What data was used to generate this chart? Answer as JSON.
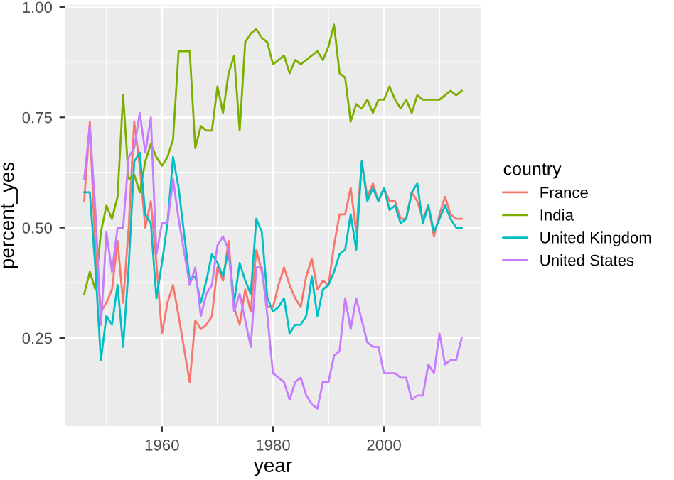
{
  "chart_data": {
    "type": "line",
    "xlabel": "year",
    "ylabel": "percent_yes",
    "legend_title": "country",
    "legend": "right",
    "grid": true,
    "x": [
      1946,
      1947,
      1948,
      1949,
      1950,
      1951,
      1952,
      1953,
      1954,
      1955,
      1956,
      1957,
      1958,
      1959,
      1960,
      1961,
      1962,
      1963,
      1965,
      1966,
      1967,
      1968,
      1969,
      1970,
      1971,
      1972,
      1973,
      1974,
      1975,
      1976,
      1977,
      1978,
      1979,
      1980,
      1981,
      1982,
      1983,
      1984,
      1985,
      1986,
      1987,
      1988,
      1989,
      1990,
      1991,
      1992,
      1993,
      1994,
      1995,
      1996,
      1997,
      1998,
      1999,
      2000,
      2001,
      2002,
      2003,
      2004,
      2005,
      2006,
      2007,
      2008,
      2009,
      2010,
      2011,
      2012,
      2013,
      2014
    ],
    "xlim": [
      1942.6,
      2017.4
    ],
    "xticks": [
      1960,
      1980,
      2000
    ],
    "ylim": [
      0.05,
      1.005
    ],
    "yticks": [
      {
        "value": 0.25,
        "label": "0.25"
      },
      {
        "value": 0.5,
        "label": "0.50"
      },
      {
        "value": 0.75,
        "label": "0.75"
      },
      {
        "value": 1.0,
        "label": "1.00"
      }
    ],
    "series": [
      {
        "name": "France",
        "color": "#f8766d",
        "values": [
          0.56,
          0.74,
          0.45,
          0.31,
          0.33,
          0.36,
          0.47,
          0.33,
          0.5,
          0.74,
          0.64,
          0.5,
          0.56,
          0.42,
          0.26,
          0.33,
          0.37,
          0.3,
          0.15,
          0.29,
          0.27,
          0.28,
          0.3,
          0.41,
          0.38,
          0.47,
          0.32,
          0.28,
          0.36,
          0.31,
          0.45,
          0.4,
          0.32,
          0.32,
          0.37,
          0.41,
          0.37,
          0.34,
          0.32,
          0.39,
          0.43,
          0.36,
          0.38,
          0.37,
          0.46,
          0.53,
          0.53,
          0.59,
          0.49,
          0.65,
          0.57,
          0.6,
          0.56,
          0.59,
          0.56,
          0.56,
          0.52,
          0.52,
          0.58,
          0.56,
          0.52,
          0.55,
          0.48,
          0.53,
          0.57,
          0.53,
          0.52,
          0.52
        ]
      },
      {
        "name": "India",
        "color": "#7cae00",
        "values": [
          0.35,
          0.4,
          0.36,
          0.49,
          0.55,
          0.52,
          0.57,
          0.8,
          0.61,
          0.62,
          0.58,
          0.65,
          0.69,
          0.66,
          0.64,
          0.66,
          0.7,
          0.9,
          0.9,
          0.68,
          0.73,
          0.72,
          0.72,
          0.82,
          0.76,
          0.85,
          0.89,
          0.72,
          0.92,
          0.94,
          0.95,
          0.93,
          0.92,
          0.87,
          0.88,
          0.89,
          0.85,
          0.88,
          0.87,
          0.88,
          0.89,
          0.9,
          0.88,
          0.91,
          0.96,
          0.85,
          0.84,
          0.74,
          0.78,
          0.77,
          0.79,
          0.76,
          0.79,
          0.79,
          0.82,
          0.79,
          0.77,
          0.79,
          0.76,
          0.8,
          0.79,
          0.79,
          0.79,
          0.79,
          0.8,
          0.81,
          0.8,
          0.81
        ]
      },
      {
        "name": "United Kingdom",
        "color": "#00bfc4",
        "values": [
          0.58,
          0.58,
          0.41,
          0.2,
          0.3,
          0.28,
          0.37,
          0.23,
          0.41,
          0.65,
          0.67,
          0.53,
          0.51,
          0.34,
          0.42,
          0.51,
          0.66,
          0.59,
          0.38,
          0.39,
          0.33,
          0.38,
          0.44,
          0.42,
          0.39,
          0.45,
          0.33,
          0.42,
          0.38,
          0.35,
          0.52,
          0.49,
          0.34,
          0.31,
          0.32,
          0.34,
          0.26,
          0.28,
          0.28,
          0.3,
          0.39,
          0.3,
          0.36,
          0.37,
          0.4,
          0.44,
          0.45,
          0.53,
          0.45,
          0.65,
          0.56,
          0.59,
          0.56,
          0.59,
          0.54,
          0.55,
          0.51,
          0.52,
          0.58,
          0.6,
          0.51,
          0.55,
          0.49,
          0.52,
          0.55,
          0.52,
          0.5,
          0.5
        ]
      },
      {
        "name": "United States",
        "color": "#c77cff",
        "values": [
          0.61,
          0.73,
          0.54,
          0.28,
          0.49,
          0.4,
          0.5,
          0.5,
          0.66,
          0.68,
          0.76,
          0.67,
          0.75,
          0.44,
          0.51,
          0.51,
          0.61,
          0.52,
          0.37,
          0.41,
          0.3,
          0.35,
          0.37,
          0.46,
          0.48,
          0.45,
          0.31,
          0.35,
          0.29,
          0.23,
          0.41,
          0.41,
          0.3,
          0.17,
          0.16,
          0.15,
          0.11,
          0.15,
          0.16,
          0.12,
          0.1,
          0.09,
          0.15,
          0.15,
          0.21,
          0.22,
          0.34,
          0.27,
          0.34,
          0.29,
          0.24,
          0.23,
          0.23,
          0.17,
          0.17,
          0.17,
          0.16,
          0.16,
          0.11,
          0.12,
          0.12,
          0.19,
          0.17,
          0.26,
          0.19,
          0.2,
          0.2,
          0.25
        ]
      }
    ]
  }
}
